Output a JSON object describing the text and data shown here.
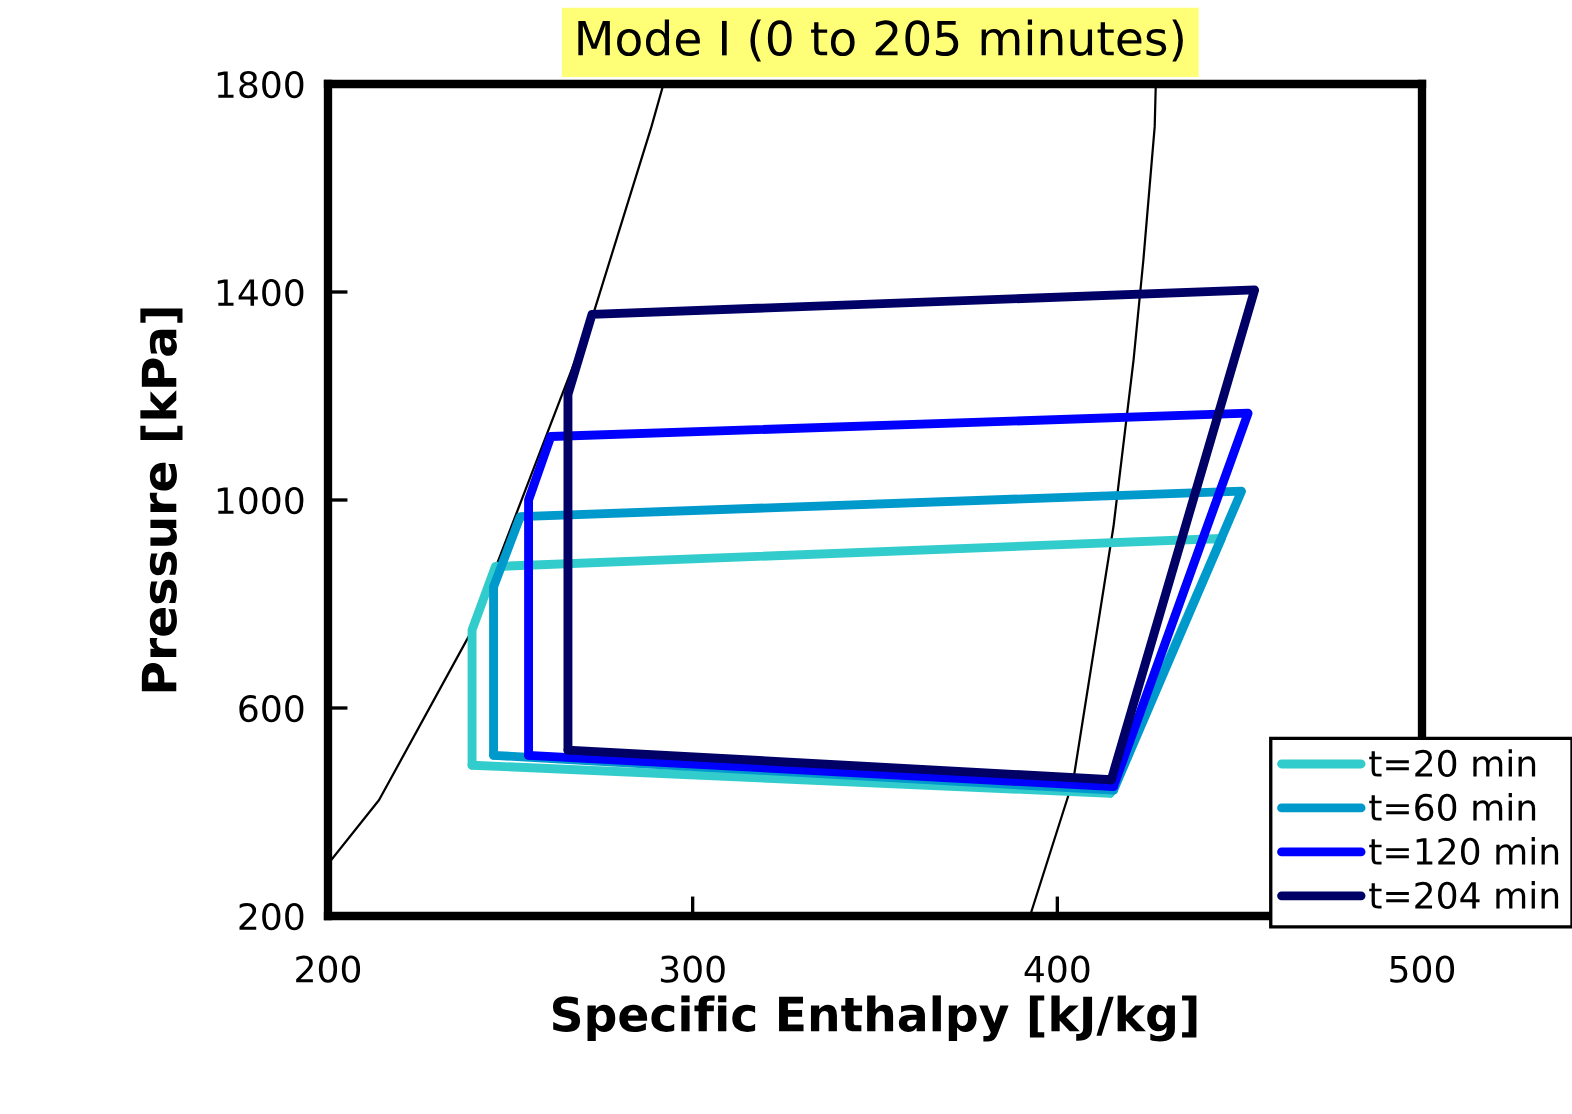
{
  "chart_data": {
    "type": "line",
    "title": "Mode I (0 to 205 minutes)",
    "xlabel": "Specific Enthalpy [kJ/kg]",
    "ylabel": "Pressure [kPa]",
    "xlim": [
      200,
      500
    ],
    "xticks": [
      200,
      300,
      400,
      500
    ],
    "ylim": [
      200,
      1800
    ],
    "yticks": [
      200,
      600,
      1000,
      1400,
      1800
    ],
    "grid": false,
    "legend": "bottom right",
    "marker": "none",
    "line_style": "solid",
    "series": [
      {
        "name": "t=20 min",
        "color": "#33cccc",
        "x": [
          239.5,
          239.5,
          245.9,
          445.0,
          414.5
        ],
        "values": [
          490,
          750,
          872,
          926,
          436
        ]
      },
      {
        "color": "#33cccc",
        "x": [
          414.5,
          239.5
        ],
        "values": [
          436,
          490
        ]
      },
      {
        "name": "t=60 min",
        "color": "#0099cc",
        "x": [
          245.4,
          245.4,
          252.7,
          450.5,
          415.4
        ],
        "values": [
          509,
          833,
          968,
          1017,
          442
        ]
      },
      {
        "color": "#0099cc",
        "x": [
          415.4,
          245.4
        ],
        "values": [
          442,
          509
        ]
      },
      {
        "name": "t=120 min",
        "color": "#0000ff",
        "x": [
          255.0,
          255.0,
          261.1,
          452.3,
          415.4
        ],
        "values": [
          509,
          1000,
          1122,
          1167,
          449
        ]
      },
      {
        "color": "#0000ff",
        "x": [
          415.4,
          255.0
        ],
        "values": [
          449,
          509
        ]
      },
      {
        "name": "t=204 min",
        "color": "#000066",
        "x": [
          265.8,
          265.8,
          272.4,
          454.1,
          414.8
        ],
        "values": [
          519,
          1203,
          1357,
          1404,
          462
        ]
      },
      {
        "color": "#000066",
        "x": [
          414.8,
          265.8
        ],
        "values": [
          462,
          519
        ]
      },
      {
        "color": "#000000",
        "x": [
          200,
          214,
          239,
          263.6,
          272.8,
          288.7,
          292
        ],
        "values": [
          300,
          423,
          743,
          1192,
          1359,
          1718,
          1800
        ]
      },
      {
        "color": "#000000",
        "x": [
          392.5,
          404.4,
          415.4,
          420.9,
          423.6,
          426.7,
          427
        ],
        "values": [
          200,
          462,
          949,
          1269,
          1462,
          1718,
          1800
        ]
      }
    ]
  }
}
